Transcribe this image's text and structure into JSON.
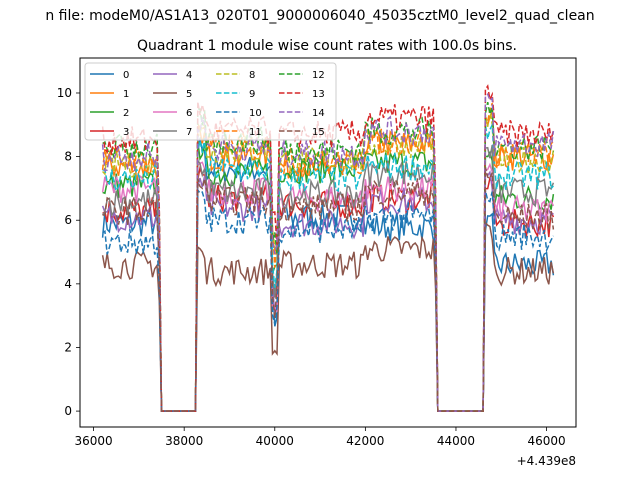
{
  "chart_data": {
    "type": "line",
    "suptitle": "n file: modeM0/AS1A13_020T01_9000006040_45035cztM0_level2_quad_clean",
    "title": "Quadrant 1 module wise count rates with 100.0s bins.",
    "xlabel": "",
    "ylabel": "",
    "x_offset_label": "+4.439e8",
    "xlim": [
      35700,
      46650
    ],
    "ylim": [
      -0.5,
      11.1
    ],
    "x_ticks": [
      36000,
      38000,
      40000,
      42000,
      44000,
      46000
    ],
    "x_tick_labels": [
      "36000",
      "38000",
      "40000",
      "42000",
      "44000",
      "46000"
    ],
    "y_ticks": [
      0,
      2,
      4,
      6,
      8,
      10
    ],
    "y_tick_labels": [
      "0",
      "2",
      "4",
      "6",
      "8",
      "10"
    ],
    "grid": false,
    "legend_placement": "top-left",
    "legend_columns": 4,
    "x_segments": [
      {
        "start": 36200,
        "end": 37450,
        "step": 50
      },
      {
        "start": 37500,
        "end": 38250,
        "step": 750
      },
      {
        "start": 38300,
        "end": 43550,
        "step": 50
      },
      {
        "start": 43600,
        "end": 44600,
        "step": 1000
      },
      {
        "start": 44650,
        "end": 46150,
        "step": 50
      }
    ],
    "series": [
      {
        "name": "0",
        "color": "#1f77b4",
        "dash": "solid",
        "levels": [
          5.9,
          7.6,
          6.1,
          5.8,
          4.6
        ]
      },
      {
        "name": "1",
        "color": "#ff7f0e",
        "dash": "solid",
        "levels": [
          7.7,
          8.0,
          7.7,
          8.4,
          8.0
        ]
      },
      {
        "name": "2",
        "color": "#2ca02c",
        "dash": "solid",
        "levels": [
          7.1,
          7.5,
          7.6,
          7.8,
          6.7
        ]
      },
      {
        "name": "3",
        "color": "#d62728",
        "dash": "solid",
        "levels": [
          6.3,
          6.7,
          6.5,
          6.7,
          5.9
        ]
      },
      {
        "name": "4",
        "color": "#9467bd",
        "dash": "solid",
        "levels": [
          6.1,
          6.4,
          5.9,
          6.6,
          6.0
        ]
      },
      {
        "name": "5",
        "color": "#8c564b",
        "dash": "solid",
        "levels": [
          4.6,
          4.4,
          4.6,
          5.1,
          4.4
        ]
      },
      {
        "name": "6",
        "color": "#e377c2",
        "dash": "solid",
        "levels": [
          7.0,
          6.9,
          6.7,
          7.0,
          6.3
        ]
      },
      {
        "name": "7",
        "color": "#7f7f7f",
        "dash": "solid",
        "levels": [
          6.6,
          6.9,
          6.8,
          7.5,
          6.9
        ]
      },
      {
        "name": "8",
        "color": "#bcbd22",
        "dash": "dashed",
        "levels": [
          7.8,
          8.2,
          7.9,
          8.4,
          7.9
        ]
      },
      {
        "name": "9",
        "color": "#17becf",
        "dash": "dashed",
        "levels": [
          7.3,
          7.6,
          7.3,
          7.7,
          7.4
        ]
      },
      {
        "name": "10",
        "color": "#1f77b4",
        "dash": "dashed",
        "levels": [
          5.3,
          6.0,
          5.7,
          6.1,
          5.5
        ]
      },
      {
        "name": "11",
        "color": "#ff7f0e",
        "dash": "dashed",
        "levels": [
          7.9,
          8.3,
          7.8,
          8.5,
          8.1
        ]
      },
      {
        "name": "12",
        "color": "#2ca02c",
        "dash": "dashed",
        "levels": [
          8.3,
          8.5,
          8.2,
          8.8,
          8.3
        ]
      },
      {
        "name": "13",
        "color": "#d62728",
        "dash": "dashed",
        "levels": [
          8.5,
          8.8,
          8.7,
          9.2,
          8.7
        ]
      },
      {
        "name": "14",
        "color": "#9467bd",
        "dash": "dashed",
        "levels": [
          8.0,
          8.3,
          8.1,
          8.8,
          8.4
        ]
      },
      {
        "name": "15",
        "color": "#8c564b",
        "dash": "dashed",
        "levels": [
          6.3,
          6.6,
          6.4,
          6.9,
          6.1
        ]
      }
    ]
  }
}
